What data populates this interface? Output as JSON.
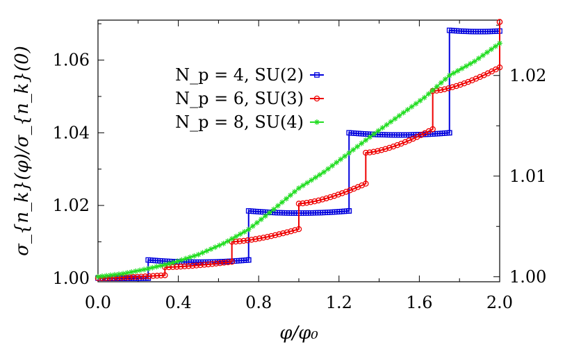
{
  "chart_data": {
    "type": "line",
    "xlabel": "φ/φ₀",
    "ylabel": "σ_{n_k}(φ)/σ_{n_k}(0)",
    "xlim": [
      0.0,
      2.0
    ],
    "ylim_left": [
      0.999,
      1.071
    ],
    "ylim_right": [
      0.9995,
      1.0255
    ],
    "x_ticks": [
      "0.0",
      "0.4",
      "0.8",
      "1.2",
      "1.6",
      "2.0"
    ],
    "y_ticks_left": [
      "1.00",
      "1.02",
      "1.04",
      "1.06"
    ],
    "y_ticks_right": [
      "1.00",
      "1.01",
      "1.02"
    ],
    "grid": false,
    "legend_position": "upper-left",
    "series": [
      {
        "name": "N_p = 4, SU(2)",
        "color": "#0000dd",
        "marker": "square",
        "axis": "left",
        "period": 0.5,
        "steps": [
          {
            "x0": 0.0,
            "x1": 0.25,
            "y0": 1.0,
            "ymid": 0.99985,
            "y1": 1.0
          },
          {
            "x0": 0.25,
            "x1": 0.75,
            "y0": 1.005,
            "ymid": 1.0038,
            "y1": 1.005
          },
          {
            "x0": 0.75,
            "x1": 1.25,
            "y0": 1.0185,
            "ymid": 1.0173,
            "y1": 1.0185
          },
          {
            "x0": 1.25,
            "x1": 1.75,
            "y0": 1.04,
            "ymid": 1.0388,
            "y1": 1.04
          },
          {
            "x0": 1.75,
            "x1": 2.0,
            "y0": 1.0682,
            "ymid": 1.0676,
            "y1": 1.068
          }
        ]
      },
      {
        "name": "N_p = 6, SU(3)",
        "color": "#ee0000",
        "marker": "circle",
        "axis": "left",
        "steps": [
          {
            "x0": 0.0,
            "x1": 0.3333,
            "y0": 1.0,
            "y1": 1.0008
          },
          {
            "x0": 0.3333,
            "x1": 0.6667,
            "y0": 1.003,
            "y1": 1.0045
          },
          {
            "x0": 0.6667,
            "x1": 1.0,
            "y0": 1.01,
            "y1": 1.0135
          },
          {
            "x0": 1.0,
            "x1": 1.3333,
            "y0": 1.0205,
            "y1": 1.026
          },
          {
            "x0": 1.3333,
            "x1": 1.6667,
            "y0": 1.0345,
            "y1": 1.041
          },
          {
            "x0": 1.6667,
            "x1": 2.0,
            "y0": 1.0515,
            "y1": 1.058
          },
          {
            "x0": 2.0,
            "x1": 2.0,
            "y0": 1.0705,
            "y1": 1.0705
          }
        ]
      },
      {
        "name": "N_p = 8, SU(4)",
        "color": "#22dd22",
        "marker": "star",
        "axis": "right",
        "points": [
          [
            0.0,
            1.0
          ],
          [
            0.125,
            1.0003
          ],
          [
            0.25,
            1.0008
          ],
          [
            0.375,
            1.0014
          ],
          [
            0.5,
            1.0022
          ],
          [
            0.625,
            1.0033
          ],
          [
            0.75,
            1.0047
          ],
          [
            0.875,
            1.0067
          ],
          [
            1.0,
            1.0088
          ],
          [
            1.125,
            1.0104
          ],
          [
            1.25,
            1.0123
          ],
          [
            1.375,
            1.0142
          ],
          [
            1.5,
            1.016
          ],
          [
            1.625,
            1.0178
          ],
          [
            1.75,
            1.02
          ],
          [
            1.875,
            1.0214
          ],
          [
            2.0,
            1.0232
          ]
        ]
      }
    ]
  }
}
